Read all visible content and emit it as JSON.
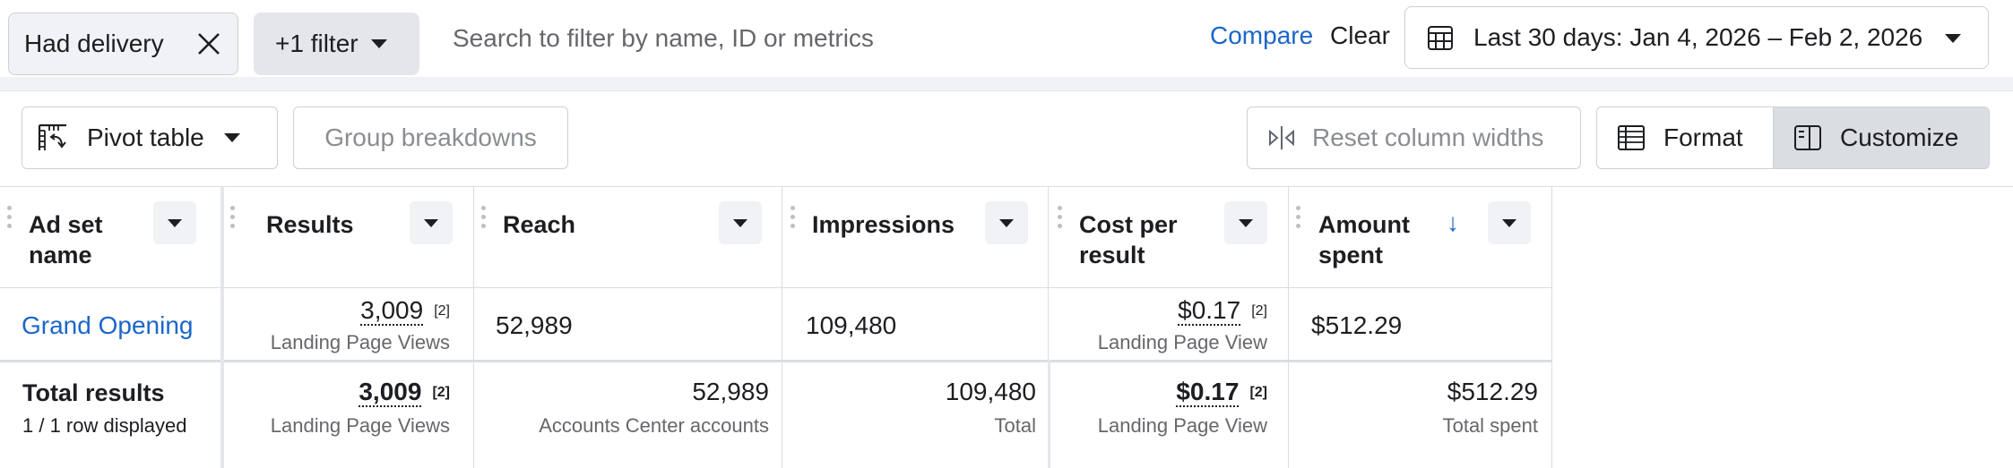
{
  "filters": {
    "chip_label": "Had delivery",
    "more_label": "+1 filter",
    "search_placeholder": "Search to filter by name, ID or metrics",
    "compare_label": "Compare",
    "clear_label": "Clear",
    "date_range_label": "Last 30 days: Jan 4, 2026 – Feb 2, 2026"
  },
  "toolbar": {
    "pivot_label": "Pivot table",
    "group_label": "Group breakdowns",
    "reset_label": "Reset column widths",
    "format_label": "Format",
    "customize_label": "Customize"
  },
  "columns": {
    "name_line1": "Ad set",
    "name_line2": "name",
    "results": "Results",
    "reach": "Reach",
    "impressions": "Impressions",
    "cpr_line1": "Cost per",
    "cpr_line2": "result",
    "spent_line1": "Amount",
    "spent_line2": "spent"
  },
  "row": {
    "name": "Grand Opening",
    "results": "3,009",
    "results_note": "[2]",
    "results_sub": "Landing Page Views",
    "reach": "52,989",
    "impressions": "109,480",
    "cpr": "$0.17",
    "cpr_note": "[2]",
    "cpr_sub": "Landing Page View",
    "spent": "$512.29"
  },
  "totals": {
    "label": "Total results",
    "rows_displayed": "1 / 1 row displayed",
    "results": "3,009",
    "results_note": "[2]",
    "results_sub": "Landing Page Views",
    "reach": "52,989",
    "reach_sub": "Accounts Center accounts",
    "impressions": "109,480",
    "impressions_sub": "Total",
    "cpr": "$0.17",
    "cpr_note": "[2]",
    "cpr_sub": "Landing Page View",
    "spent": "$512.29",
    "spent_sub": "Total spent"
  },
  "sort": {
    "column": "Amount spent",
    "direction": "descending"
  },
  "colors": {
    "link": "#1b66c9",
    "text": "#1c1e21",
    "muted": "#65676b"
  }
}
